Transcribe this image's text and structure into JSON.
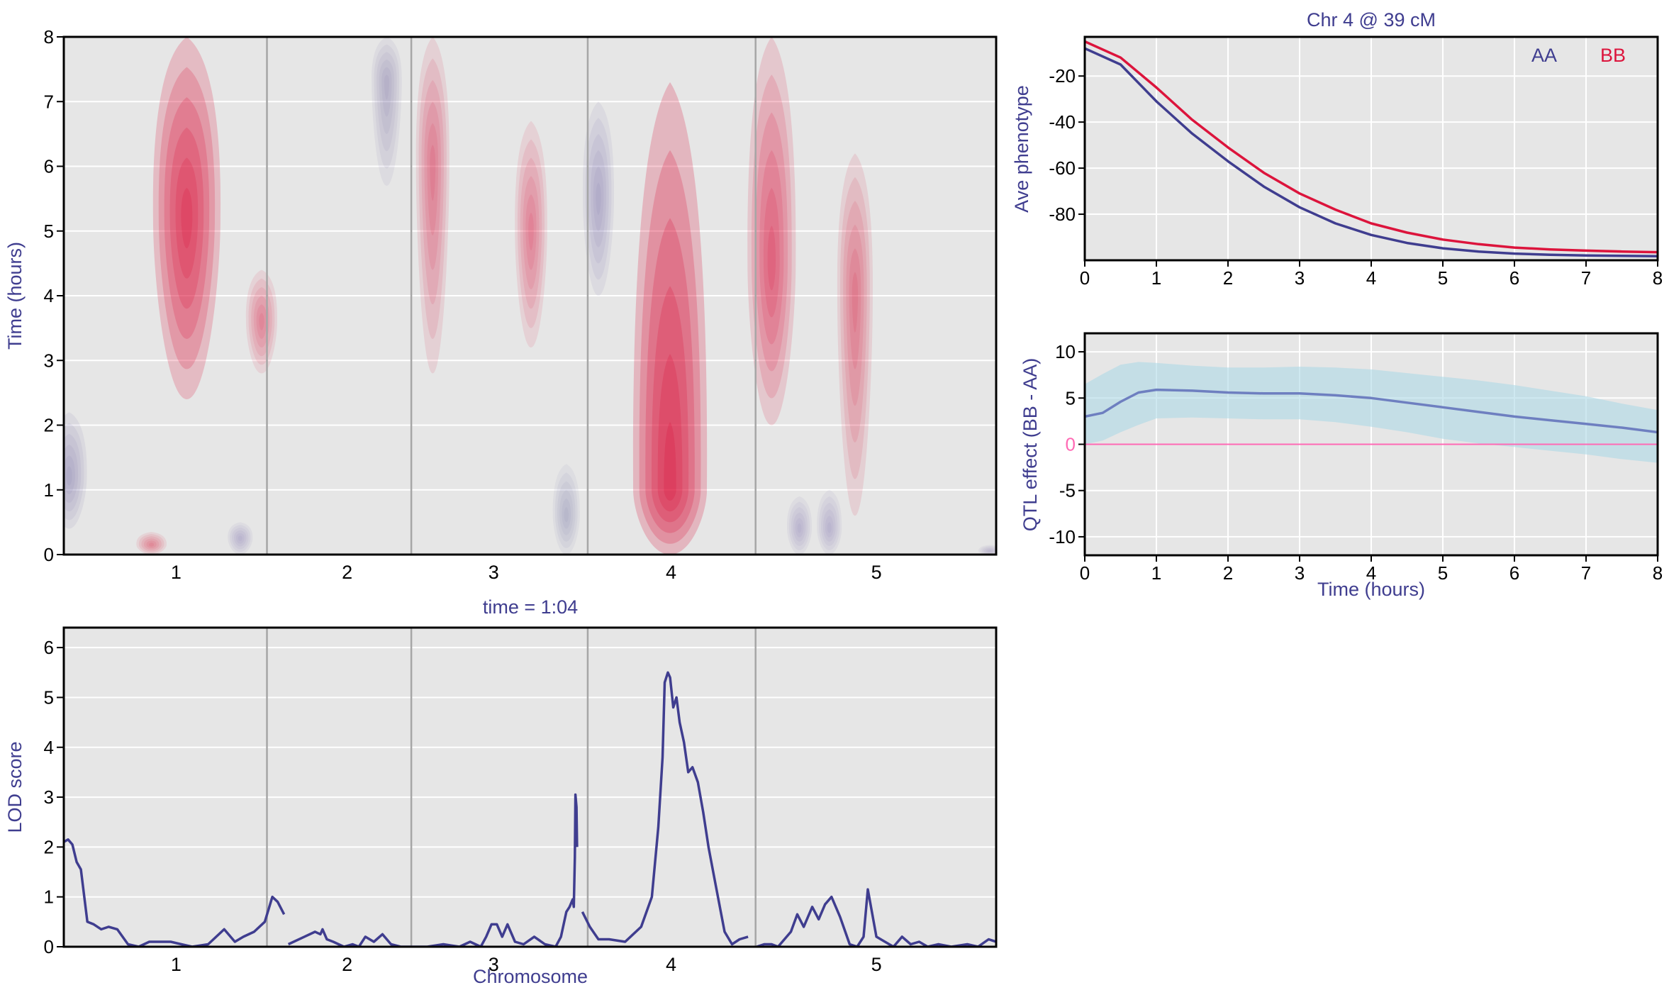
{
  "colors": {
    "navy": "#3f3d8f",
    "crimson": "#dc143c",
    "panel_bg": "#e6e6e6",
    "ci_fill": "#add8e6",
    "effect_line": "#6e7fc0",
    "zero_line": "#ff69b4",
    "chr_sep": "#a6a6a6"
  },
  "chart_data": [
    {
      "id": "heatmap",
      "type": "heatmap",
      "title": "",
      "xlabel": "",
      "ylabel": "Time (hours)",
      "ylim": [
        0,
        8
      ],
      "yticks": [
        "0",
        "1",
        "2",
        "3",
        "4",
        "5",
        "6",
        "7",
        "8"
      ],
      "chromosomes": [
        "1",
        "2",
        "3",
        "4",
        "5"
      ],
      "chr_boundaries_cM": [
        0,
        190,
        325,
        490,
        647,
        872
      ],
      "chr_label_positions_cM": [
        105,
        265,
        402,
        568,
        760
      ],
      "value_description": "signed LOD; positive = red (BB > AA), negative = blue",
      "blobs": [
        {
          "cM": 115,
          "t_from": 2.4,
          "t_to": 8.0,
          "peak_t": 5.2,
          "lod": 5.0,
          "sign": 1
        },
        {
          "cM": 185,
          "t_from": 2.8,
          "t_to": 4.4,
          "peak_t": 3.6,
          "lod": 1.6,
          "sign": 1
        },
        {
          "cM": 82,
          "t_from": 0.0,
          "t_to": 0.35,
          "peak_t": 0.15,
          "lod": 1.5,
          "sign": 1
        },
        {
          "cM": 5,
          "t_from": 0.4,
          "t_to": 2.2,
          "peak_t": 1.2,
          "lod": 2.0,
          "sign": -1
        },
        {
          "cM": 165,
          "t_from": 0.0,
          "t_to": 0.5,
          "peak_t": 0.25,
          "lod": 1.0,
          "sign": -1
        },
        {
          "cM": 302,
          "t_from": 5.7,
          "t_to": 8.0,
          "peak_t": 7.3,
          "lod": 1.5,
          "sign": -1
        },
        {
          "cM": 345,
          "t_from": 2.8,
          "t_to": 8.0,
          "peak_t": 6.0,
          "lod": 1.8,
          "sign": 1
        },
        {
          "cM": 437,
          "t_from": 3.2,
          "t_to": 6.7,
          "peak_t": 5.0,
          "lod": 1.7,
          "sign": 1
        },
        {
          "cM": 470,
          "t_from": 0.0,
          "t_to": 1.4,
          "peak_t": 0.6,
          "lod": 1.2,
          "sign": -1
        },
        {
          "cM": 500,
          "t_from": 4.0,
          "t_to": 7.0,
          "peak_t": 5.5,
          "lod": 1.6,
          "sign": -1
        },
        {
          "cM": 567,
          "t_from": 0.0,
          "t_to": 7.3,
          "peak_t": 1.0,
          "lod": 5.6,
          "sign": 1
        },
        {
          "cM": 662,
          "t_from": 2.0,
          "t_to": 8.0,
          "peak_t": 4.5,
          "lod": 3.2,
          "sign": 1
        },
        {
          "cM": 740,
          "t_from": 0.6,
          "t_to": 6.2,
          "peak_t": 4.0,
          "lod": 2.0,
          "sign": 1
        },
        {
          "cM": 688,
          "t_from": 0.0,
          "t_to": 0.9,
          "peak_t": 0.4,
          "lod": 1.0,
          "sign": -1
        },
        {
          "cM": 716,
          "t_from": 0.0,
          "t_to": 1.0,
          "peak_t": 0.4,
          "lod": 1.0,
          "sign": -1
        },
        {
          "cM": 866,
          "t_from": 0.0,
          "t_to": 0.15,
          "peak_t": 0.05,
          "lod": 0.8,
          "sign": -1
        }
      ]
    },
    {
      "id": "lod",
      "type": "line",
      "title": "time = 1:04",
      "xlabel": "Chromosome",
      "ylabel": "LOD score",
      "ylim": [
        0,
        6.4
      ],
      "yticks": [
        "0",
        "1",
        "2",
        "3",
        "4",
        "5",
        "6"
      ],
      "chromosomes": [
        "1",
        "2",
        "3",
        "4",
        "5"
      ],
      "chr_boundaries_cM": [
        0,
        190,
        325,
        490,
        647,
        872
      ],
      "chr_label_positions_cM": [
        105,
        265,
        402,
        568,
        760
      ],
      "series": [
        {
          "chr": "1",
          "x": [
            0,
            4,
            8,
            12,
            16,
            22,
            28,
            35,
            42,
            50,
            60,
            70,
            80,
            100,
            120,
            135,
            150,
            160,
            168,
            178,
            188,
            195,
            200,
            206
          ],
          "y": [
            2.1,
            2.15,
            2.05,
            1.7,
            1.55,
            0.5,
            0.45,
            0.35,
            0.4,
            0.35,
            0.05,
            0.0,
            0.1,
            0.1,
            0.0,
            0.05,
            0.35,
            0.1,
            0.2,
            0.3,
            0.5,
            1.0,
            0.9,
            0.65
          ]
        },
        {
          "chr": "2",
          "x": [
            210,
            225,
            235,
            240,
            242,
            246,
            252,
            262,
            270,
            276,
            282,
            290,
            298,
            306,
            315,
            325
          ],
          "y": [
            0.05,
            0.2,
            0.3,
            0.25,
            0.35,
            0.15,
            0.1,
            0.0,
            0.05,
            0.0,
            0.2,
            0.1,
            0.25,
            0.05,
            0.0,
            0.0
          ]
        },
        {
          "chr": "3",
          "x": [
            325,
            340,
            355,
            370,
            380,
            390,
            395,
            400,
            405,
            410,
            415,
            422,
            430,
            440,
            450,
            460,
            465,
            470,
            473,
            476,
            477,
            478,
            478.5,
            479.5,
            480
          ],
          "y": [
            0.0,
            0.0,
            0.05,
            0.0,
            0.1,
            0.0,
            0.2,
            0.45,
            0.45,
            0.2,
            0.45,
            0.1,
            0.05,
            0.2,
            0.05,
            0.0,
            0.2,
            0.7,
            0.8,
            0.95,
            0.8,
            1.8,
            3.05,
            2.8,
            2.0
          ]
        },
        {
          "chr": "4",
          "x": [
            485,
            492,
            500,
            510,
            525,
            540,
            550,
            556,
            560,
            562,
            565,
            567,
            570,
            573,
            576,
            580,
            584,
            588,
            593,
            598,
            603,
            610,
            618,
            625,
            632,
            640
          ],
          "y": [
            0.7,
            0.4,
            0.15,
            0.15,
            0.1,
            0.4,
            1.0,
            2.4,
            3.8,
            5.3,
            5.5,
            5.4,
            4.8,
            5.0,
            4.5,
            4.1,
            3.5,
            3.6,
            3.3,
            2.7,
            2.0,
            1.2,
            0.3,
            0.05,
            0.15,
            0.2
          ]
        },
        {
          "chr": "5",
          "x": [
            648,
            655,
            662,
            668,
            674,
            680,
            686,
            692,
            700,
            706,
            712,
            718,
            726,
            735,
            742,
            748,
            752,
            760,
            768,
            776,
            784,
            792,
            800,
            808,
            818,
            830,
            845,
            855,
            865,
            872
          ],
          "y": [
            0.0,
            0.05,
            0.05,
            0.0,
            0.15,
            0.3,
            0.65,
            0.4,
            0.8,
            0.55,
            0.85,
            1.0,
            0.6,
            0.05,
            0.0,
            0.2,
            1.15,
            0.2,
            0.1,
            0.0,
            0.2,
            0.05,
            0.1,
            0.0,
            0.05,
            0.0,
            0.05,
            0.0,
            0.15,
            0.1
          ]
        }
      ]
    },
    {
      "id": "phenotype",
      "type": "line",
      "title": "Chr 4 @ 39 cM",
      "xlabel": "",
      "ylabel": "Ave phenotype",
      "xlim": [
        0,
        8
      ],
      "ylim": [
        -100,
        -3
      ],
      "xticks": [
        "0",
        "1",
        "2",
        "3",
        "4",
        "5",
        "6",
        "7",
        "8"
      ],
      "yticks": [
        "-20",
        "-40",
        "-60",
        "-80"
      ],
      "legend": [
        "AA",
        "BB"
      ],
      "legend_position": "top-right",
      "series": [
        {
          "name": "AA",
          "x": [
            0,
            0.5,
            1,
            1.5,
            2,
            2.5,
            3,
            3.5,
            4,
            4.5,
            5,
            5.5,
            6,
            6.5,
            7,
            7.5,
            8
          ],
          "y": [
            -8,
            -15,
            -31,
            -45,
            -57,
            -68,
            -77,
            -84,
            -89,
            -92.5,
            -94.8,
            -96.2,
            -97.1,
            -97.6,
            -97.9,
            -98.1,
            -98.2
          ]
        },
        {
          "name": "BB",
          "x": [
            0,
            0.5,
            1,
            1.5,
            2,
            2.5,
            3,
            3.5,
            4,
            4.5,
            5,
            5.5,
            6,
            6.5,
            7,
            7.5,
            8
          ],
          "y": [
            -5,
            -12,
            -25,
            -39,
            -51,
            -62,
            -71,
            -78,
            -84,
            -88,
            -91,
            -93,
            -94.5,
            -95.3,
            -95.8,
            -96.2,
            -96.5
          ]
        }
      ]
    },
    {
      "id": "effect",
      "type": "area",
      "title": "",
      "xlabel": "Time (hours)",
      "ylabel": "QTL effect (BB - AA)",
      "xlim": [
        0,
        8
      ],
      "ylim": [
        -12,
        12
      ],
      "xticks": [
        "0",
        "1",
        "2",
        "3",
        "4",
        "5",
        "6",
        "7",
        "8"
      ],
      "yticks": [
        "-10",
        "-5",
        "0",
        "5",
        "10"
      ],
      "series": [
        {
          "name": "effect",
          "x": [
            0,
            0.25,
            0.5,
            0.75,
            1,
            1.5,
            2,
            2.5,
            3,
            3.5,
            4,
            4.5,
            5,
            5.5,
            6,
            6.5,
            7,
            7.5,
            8
          ],
          "y": [
            3.0,
            3.4,
            4.6,
            5.6,
            5.9,
            5.8,
            5.6,
            5.5,
            5.5,
            5.3,
            5.0,
            4.5,
            4.0,
            3.5,
            3.0,
            2.6,
            2.2,
            1.8,
            1.3
          ]
        },
        {
          "name": "ci_upper",
          "x": [
            0,
            0.25,
            0.5,
            0.75,
            1,
            1.5,
            2,
            2.5,
            3,
            3.5,
            4,
            4.5,
            5,
            5.5,
            6,
            6.5,
            7,
            7.5,
            8
          ],
          "y": [
            6.5,
            7.6,
            8.6,
            8.9,
            8.8,
            8.5,
            8.3,
            8.3,
            8.4,
            8.3,
            8.1,
            7.7,
            7.3,
            6.9,
            6.4,
            5.8,
            5.2,
            4.4,
            3.7
          ]
        },
        {
          "name": "ci_lower",
          "x": [
            0,
            0.25,
            0.5,
            0.75,
            1,
            1.5,
            2,
            2.5,
            3,
            3.5,
            4,
            4.5,
            5,
            5.5,
            6,
            6.5,
            7,
            7.5,
            8
          ],
          "y": [
            0.0,
            0.4,
            1.3,
            2.1,
            2.8,
            2.9,
            2.8,
            2.7,
            2.7,
            2.4,
            1.9,
            1.3,
            0.6,
            0.1,
            -0.3,
            -0.7,
            -1.1,
            -1.6,
            -2.0
          ]
        }
      ]
    }
  ]
}
